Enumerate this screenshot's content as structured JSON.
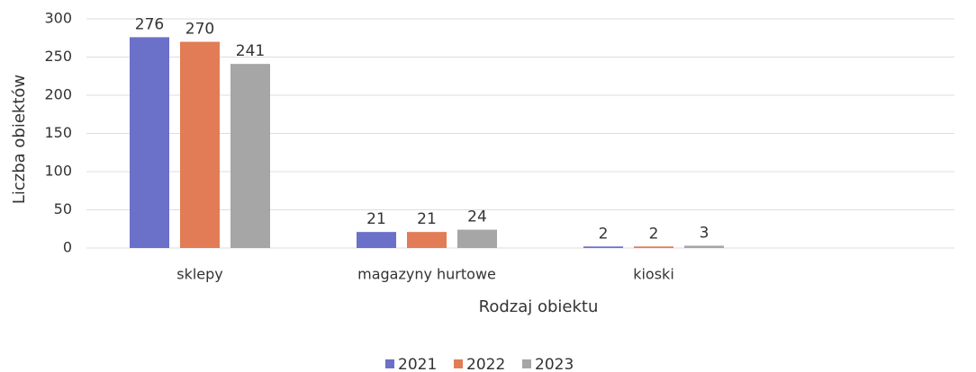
{
  "chart_data": {
    "type": "bar",
    "categories": [
      "sklepy",
      "magazyny hurtowe",
      "kioski"
    ],
    "series": [
      {
        "name": "2021",
        "color": "#6b70c8",
        "values": [
          276,
          21,
          2
        ]
      },
      {
        "name": "2022",
        "color": "#e27c56",
        "values": [
          270,
          21,
          2
        ]
      },
      {
        "name": "2023",
        "color": "#a6a6a6",
        "values": [
          241,
          24,
          3
        ]
      }
    ],
    "xlabel": "Rodzaj obiektu",
    "ylabel": "Liczba obiektów",
    "ylim": [
      0,
      300
    ],
    "yticks": [
      0,
      50,
      100,
      150,
      200,
      250,
      300
    ],
    "grid": true,
    "legend": "bottom"
  }
}
